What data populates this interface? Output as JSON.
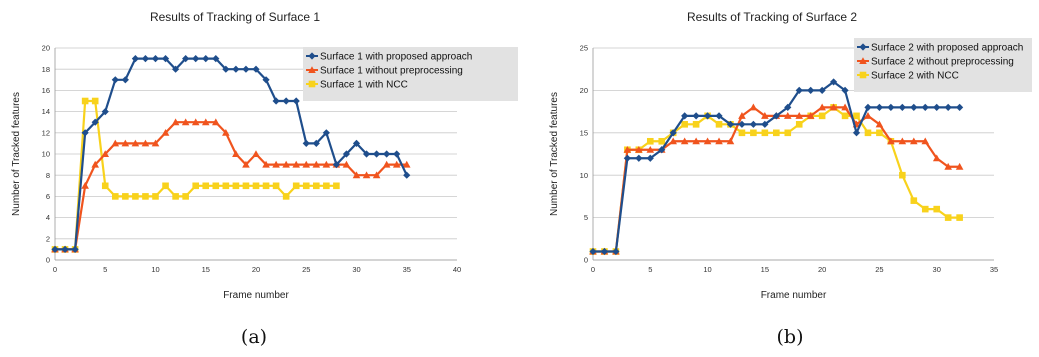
{
  "chart_data": [
    {
      "type": "line",
      "title": "Results of Tracking of Surface 1",
      "xlabel": "Frame number",
      "ylabel": "Number of Tracked features",
      "xlim": [
        0,
        40
      ],
      "ylim": [
        0,
        20
      ],
      "xticks": [
        0,
        5,
        10,
        15,
        20,
        25,
        30,
        35,
        40
      ],
      "yticks": [
        0,
        2,
        4,
        6,
        8,
        10,
        12,
        14,
        16,
        18,
        20
      ],
      "grid": "horizontal",
      "legend": "top-right",
      "caption": "(a)",
      "series": [
        {
          "name": "Surface 1 with proposed approach",
          "color": "#1f4e8c",
          "marker": "diamond",
          "x": [
            0,
            1,
            2,
            3,
            4,
            5,
            6,
            7,
            8,
            9,
            10,
            11,
            12,
            13,
            14,
            15,
            16,
            17,
            18,
            19,
            20,
            21,
            22,
            23,
            24,
            25,
            26,
            27,
            28,
            29,
            30,
            31,
            32,
            33,
            34,
            35
          ],
          "y": [
            1,
            1,
            1,
            12,
            13,
            14,
            17,
            17,
            19,
            19,
            19,
            19,
            18,
            19,
            19,
            19,
            19,
            18,
            18,
            18,
            18,
            17,
            15,
            15,
            15,
            11,
            11,
            12,
            9,
            10,
            11,
            10,
            10,
            10,
            10,
            8
          ]
        },
        {
          "name": "Surface 1 without preprocessing",
          "color": "#f0541e",
          "marker": "triangle",
          "x": [
            0,
            1,
            2,
            3,
            4,
            5,
            6,
            7,
            8,
            9,
            10,
            11,
            12,
            13,
            14,
            15,
            16,
            17,
            18,
            19,
            20,
            21,
            22,
            23,
            24,
            25,
            26,
            27,
            28,
            29,
            30,
            31,
            32,
            33,
            34,
            35
          ],
          "y": [
            1,
            1,
            1,
            7,
            9,
            10,
            11,
            11,
            11,
            11,
            11,
            12,
            13,
            13,
            13,
            13,
            13,
            12,
            10,
            9,
            10,
            9,
            9,
            9,
            9,
            9,
            9,
            9,
            9,
            9,
            8,
            8,
            8,
            9,
            9,
            9
          ]
        },
        {
          "name": "Surface 1 with NCC",
          "color": "#f8d21c",
          "marker": "square",
          "x": [
            0,
            1,
            2,
            3,
            4,
            5,
            6,
            7,
            8,
            9,
            10,
            11,
            12,
            13,
            14,
            15,
            16,
            17,
            18,
            19,
            20,
            21,
            22,
            23,
            24,
            25,
            26,
            27,
            28
          ],
          "y": [
            1,
            1,
            1,
            15,
            15,
            7,
            6,
            6,
            6,
            6,
            6,
            7,
            6,
            6,
            7,
            7,
            7,
            7,
            7,
            7,
            7,
            7,
            7,
            6,
            7,
            7,
            7,
            7,
            7
          ]
        }
      ]
    },
    {
      "type": "line",
      "title": "Results of Tracking of Surface 2",
      "xlabel": "Frame number",
      "ylabel": "Number of Tracked features",
      "xlim": [
        0,
        35
      ],
      "ylim": [
        0,
        25
      ],
      "xticks": [
        0,
        5,
        10,
        15,
        20,
        25,
        30,
        35
      ],
      "yticks": [
        0,
        5,
        10,
        15,
        20,
        25
      ],
      "grid": "horizontal",
      "legend": "top-right",
      "caption": "(b)",
      "series": [
        {
          "name": "Surface 2 with proposed approach",
          "color": "#1f4e8c",
          "marker": "diamond",
          "x": [
            0,
            1,
            2,
            3,
            4,
            5,
            6,
            7,
            8,
            9,
            10,
            11,
            12,
            13,
            14,
            15,
            16,
            17,
            18,
            19,
            20,
            21,
            22,
            23,
            24,
            25,
            26,
            27,
            28,
            29,
            30,
            31,
            32
          ],
          "y": [
            1,
            1,
            1,
            12,
            12,
            12,
            13,
            15,
            17,
            17,
            17,
            17,
            16,
            16,
            16,
            16,
            17,
            18,
            20,
            20,
            20,
            21,
            20,
            15,
            18,
            18,
            18,
            18,
            18,
            18,
            18,
            18,
            18
          ]
        },
        {
          "name": "Surface 2 without preprocessing",
          "color": "#f0541e",
          "marker": "triangle",
          "x": [
            0,
            1,
            2,
            3,
            4,
            5,
            6,
            7,
            8,
            9,
            10,
            11,
            12,
            13,
            14,
            15,
            16,
            17,
            18,
            19,
            20,
            21,
            22,
            23,
            24,
            25,
            26,
            27,
            28,
            29,
            30,
            31,
            32
          ],
          "y": [
            1,
            1,
            1,
            13,
            13,
            13,
            13,
            14,
            14,
            14,
            14,
            14,
            14,
            17,
            18,
            17,
            17,
            17,
            17,
            17,
            18,
            18,
            18,
            16,
            17,
            16,
            14,
            14,
            14,
            14,
            12,
            11,
            11
          ]
        },
        {
          "name": "Surface 2 with NCC",
          "color": "#f8d21c",
          "marker": "square",
          "x": [
            0,
            1,
            2,
            3,
            4,
            5,
            6,
            7,
            8,
            9,
            10,
            11,
            12,
            13,
            14,
            15,
            16,
            17,
            18,
            19,
            20,
            21,
            22,
            23,
            24,
            25,
            26,
            27,
            28,
            29,
            30,
            31,
            32
          ],
          "y": [
            1,
            1,
            1,
            13,
            13,
            14,
            14,
            15,
            16,
            16,
            17,
            16,
            16,
            15,
            15,
            15,
            15,
            15,
            16,
            17,
            17,
            18,
            17,
            17,
            15,
            15,
            14,
            10,
            7,
            6,
            6,
            5,
            5
          ]
        }
      ]
    }
  ]
}
